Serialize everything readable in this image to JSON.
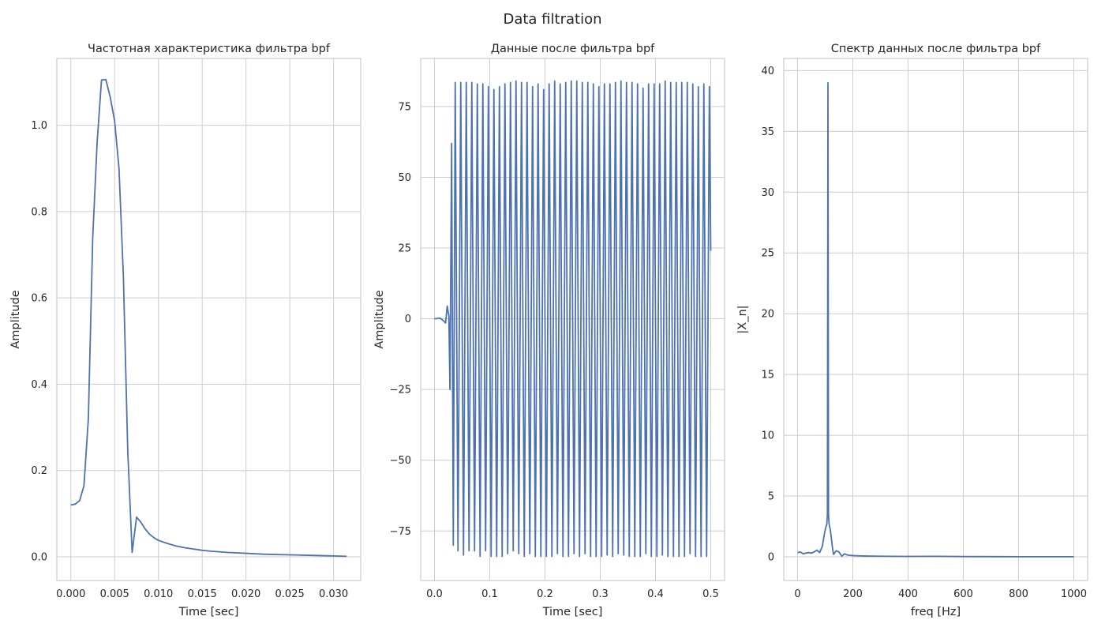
{
  "figure": {
    "suptitle": "Data filtration"
  },
  "chart_data": [
    {
      "type": "line",
      "title": "Частотная характеристика фильтра bpf",
      "xlabel": "Time [sec]",
      "ylabel": "Amplitude",
      "xlim": [
        -0.0016,
        0.0331
      ],
      "ylim": [
        -0.055,
        1.155
      ],
      "xticks": [
        0.0,
        0.005,
        0.01,
        0.015,
        0.02,
        0.025,
        0.03
      ],
      "xticklabels": [
        "0.000",
        "0.005",
        "0.010",
        "0.015",
        "0.020",
        "0.025",
        "0.030"
      ],
      "yticks": [
        0.0,
        0.2,
        0.4,
        0.6,
        0.8,
        1.0
      ],
      "yticklabels": [
        "0.0",
        "0.2",
        "0.4",
        "0.6",
        "0.8",
        "1.0"
      ],
      "grid": true,
      "series": [
        {
          "x": [
            0.0,
            0.0005,
            0.001,
            0.0015,
            0.002,
            0.0025,
            0.003,
            0.0035,
            0.004,
            0.0045,
            0.005,
            0.0055,
            0.006,
            0.0065,
            0.007,
            0.0075,
            0.008,
            0.0085,
            0.009,
            0.0095,
            0.01,
            0.011,
            0.012,
            0.013,
            0.014,
            0.015,
            0.016,
            0.018,
            0.02,
            0.022,
            0.024,
            0.026,
            0.028,
            0.03,
            0.0315
          ],
          "y": [
            0.12,
            0.122,
            0.13,
            0.165,
            0.32,
            0.74,
            0.96,
            1.105,
            1.106,
            1.065,
            1.01,
            0.9,
            0.65,
            0.245,
            0.01,
            0.092,
            0.08,
            0.064,
            0.052,
            0.044,
            0.038,
            0.031,
            0.025,
            0.021,
            0.018,
            0.015,
            0.013,
            0.01,
            0.008,
            0.006,
            0.005,
            0.004,
            0.003,
            0.002,
            0.001
          ]
        }
      ]
    },
    {
      "type": "line",
      "title": "Данные после фильтра bpf",
      "xlabel": "Time [sec]",
      "ylabel": "Amplitude",
      "xlim": [
        -0.025,
        0.525
      ],
      "ylim": [
        -92.5,
        92.0
      ],
      "xticks": [
        0.0,
        0.1,
        0.2,
        0.3,
        0.4,
        0.5
      ],
      "xticklabels": [
        "0.0",
        "0.1",
        "0.2",
        "0.3",
        "0.4",
        "0.5"
      ],
      "yticks": [
        -75,
        -50,
        -25,
        0,
        25,
        50,
        75
      ],
      "yticklabels": [
        "−75",
        "−50",
        "−25",
        "0",
        "25",
        "50",
        "75"
      ],
      "grid": true,
      "series": [
        {
          "x": [
            0.0,
            0.01,
            0.015,
            0.02,
            0.023,
            0.026,
            0.028,
            0.031,
            0.034,
            0.0375,
            0.0425,
            0.0475,
            0.0525,
            0.0575,
            0.0625,
            0.0675,
            0.0725,
            0.0775,
            0.0825,
            0.0875,
            0.0925,
            0.0975,
            0.1025,
            0.1075,
            0.1125,
            0.1175,
            0.1225,
            0.1275,
            0.1325,
            0.1375,
            0.1425,
            0.1475,
            0.1525,
            0.1575,
            0.1625,
            0.1675,
            0.1725,
            0.1775,
            0.1825,
            0.1875,
            0.1925,
            0.1975,
            0.2025,
            0.2075,
            0.2125,
            0.2175,
            0.2225,
            0.2275,
            0.2325,
            0.2375,
            0.2425,
            0.2475,
            0.2525,
            0.2575,
            0.2625,
            0.2675,
            0.2725,
            0.2775,
            0.2825,
            0.2875,
            0.2925,
            0.2975,
            0.3025,
            0.3075,
            0.3125,
            0.3175,
            0.3225,
            0.3275,
            0.3325,
            0.3375,
            0.3425,
            0.3475,
            0.3525,
            0.3575,
            0.3625,
            0.3675,
            0.3725,
            0.3775,
            0.3825,
            0.3875,
            0.3925,
            0.3975,
            0.4025,
            0.4075,
            0.4125,
            0.4175,
            0.4225,
            0.4275,
            0.4325,
            0.4375,
            0.4425,
            0.4475,
            0.4525,
            0.4575,
            0.4625,
            0.4675,
            0.4725,
            0.4775,
            0.4825,
            0.4875,
            0.4925,
            0.4975,
            0.5
          ],
          "y": [
            0,
            0.2,
            -0.5,
            -1.5,
            4.5,
            1.0,
            -25,
            62,
            -80,
            83.5,
            -82,
            83.5,
            -83.5,
            83.5,
            -82,
            83.5,
            -82,
            83,
            -84,
            83,
            -82,
            82,
            -84,
            81,
            -84,
            82,
            -84,
            83,
            -83,
            83.5,
            -82,
            84,
            -83,
            83.5,
            -84,
            83.5,
            -83,
            82,
            -84,
            83,
            -84,
            81,
            -84,
            83,
            -84,
            84,
            -83,
            83,
            -84,
            83.5,
            -84,
            84,
            -83,
            84,
            -84,
            83.5,
            -83,
            83.5,
            -84,
            83,
            -84,
            82,
            -84,
            83,
            -83.5,
            83,
            -84,
            83.5,
            -83,
            84,
            -83.5,
            83.5,
            -84,
            83.5,
            -84,
            83,
            -84,
            81.5,
            -83,
            83,
            -84,
            83,
            -84,
            83,
            -83.5,
            84,
            -84,
            83.5,
            -84,
            83.5,
            -84,
            83.5,
            -84,
            83.5,
            -83,
            83,
            -84,
            82,
            -84,
            83,
            -84,
            82,
            24
          ]
        }
      ]
    },
    {
      "type": "line",
      "title": "Спектр данных после фильтра bpf",
      "xlabel": "freq [Hz]",
      "ylabel": "|X_n|",
      "xlim": [
        -50,
        1050
      ],
      "ylim": [
        -1.95,
        41.0
      ],
      "xticks": [
        0,
        200,
        400,
        600,
        800,
        1000
      ],
      "xticklabels": [
        "0",
        "200",
        "400",
        "600",
        "800",
        "1000"
      ],
      "yticks": [
        0,
        5,
        10,
        15,
        20,
        25,
        30,
        35,
        40
      ],
      "yticklabels": [
        "0",
        "5",
        "10",
        "15",
        "20",
        "25",
        "30",
        "35",
        "40"
      ],
      "grid": true,
      "series": [
        {
          "x": [
            0,
            10,
            20,
            30,
            40,
            50,
            60,
            70,
            80,
            90,
            98,
            102,
            106,
            108,
            110,
            112,
            114,
            118,
            122,
            126,
            130,
            140,
            150,
            160,
            170,
            180,
            190,
            200,
            220,
            250,
            300,
            400,
            500,
            600,
            800,
            1000
          ],
          "y": [
            0.35,
            0.4,
            0.25,
            0.3,
            0.35,
            0.3,
            0.4,
            0.55,
            0.35,
            0.9,
            2.0,
            2.4,
            2.7,
            3.5,
            39.0,
            3.5,
            2.7,
            2.3,
            1.6,
            0.8,
            0.2,
            0.5,
            0.4,
            0.05,
            0.25,
            0.15,
            0.12,
            0.1,
            0.08,
            0.06,
            0.05,
            0.03,
            0.04,
            0.02,
            0.01,
            0.01
          ]
        }
      ]
    }
  ]
}
